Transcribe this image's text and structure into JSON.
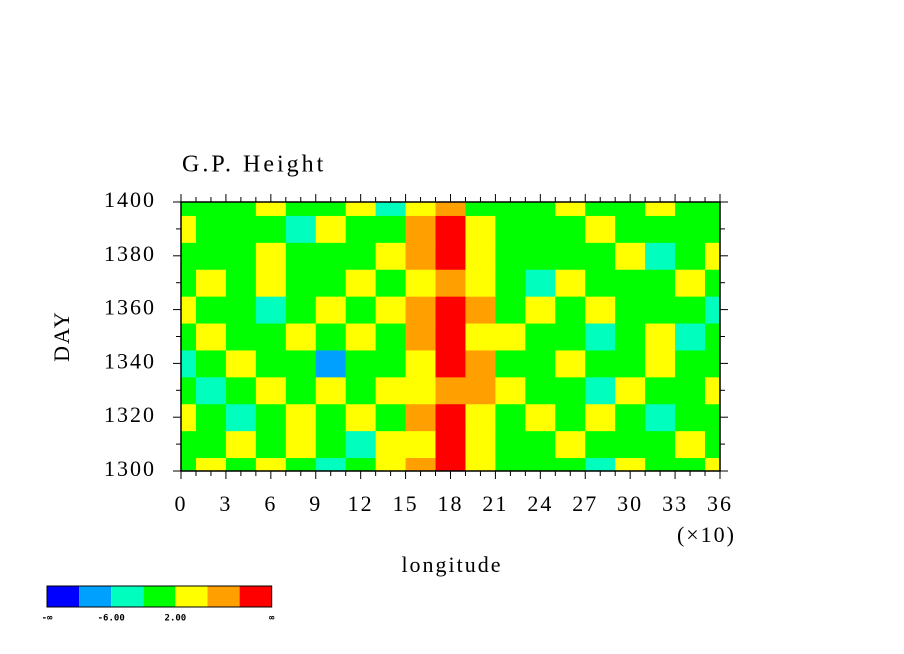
{
  "chart_data": {
    "type": "contourf",
    "title": "G.P. Height",
    "ylabel": "DAY",
    "xlabel": "longitude",
    "x_multiplier": "(×10)",
    "xlim": [
      0,
      36
    ],
    "xticks": [
      0,
      3,
      6,
      9,
      12,
      15,
      18,
      21,
      24,
      27,
      30,
      33,
      36
    ],
    "xminorticks": [
      1,
      2,
      4,
      5,
      7,
      8,
      10,
      11,
      13,
      14,
      16,
      17,
      19,
      20,
      22,
      23,
      25,
      26,
      28,
      29,
      31,
      32,
      34,
      35
    ],
    "ylim": [
      1300,
      1400
    ],
    "yticks": [
      1300,
      1320,
      1340,
      1360,
      1380,
      1400
    ],
    "yminorticks": [
      1310,
      1330,
      1350,
      1370,
      1390
    ],
    "x": [
      0,
      2,
      4,
      6,
      8,
      10,
      12,
      14,
      16,
      18,
      20,
      22,
      24,
      26,
      28,
      30,
      32,
      34,
      36
    ],
    "y": [
      1300,
      1310,
      1320,
      1330,
      1340,
      1350,
      1360,
      1370,
      1380,
      1390,
      1400
    ],
    "z": [
      [
        1,
        3,
        -1,
        2,
        0,
        -3,
        1,
        4,
        7,
        12,
        3,
        -2,
        1,
        0,
        -4,
        2,
        1,
        -1,
        3
      ],
      [
        -2,
        1,
        3,
        -1,
        2,
        0,
        -3,
        2,
        5,
        11,
        4,
        1,
        -1,
        3,
        0,
        -2,
        1,
        2,
        0
      ],
      [
        2,
        0,
        -3,
        1,
        4,
        -1,
        2,
        -2,
        6,
        13,
        5,
        0,
        3,
        -1,
        2,
        1,
        -3,
        0,
        1
      ],
      [
        0,
        -4,
        1,
        3,
        -1,
        2,
        0,
        3,
        4,
        9,
        7,
        2,
        -2,
        1,
        -3,
        4,
        0,
        -1,
        2
      ],
      [
        -3,
        1,
        2,
        -1,
        0,
        -7,
        1,
        -2,
        5,
        12,
        6,
        -1,
        0,
        2,
        1,
        -2,
        3,
        1,
        -1
      ],
      [
        1,
        2,
        -1,
        0,
        3,
        -2,
        4,
        1,
        7,
        11,
        3,
        2,
        -1,
        0,
        -3,
        1,
        2,
        -4,
        0
      ],
      [
        2,
        -1,
        0,
        -3,
        1,
        2,
        -1,
        3,
        6,
        14,
        8,
        0,
        2,
        -1,
        4,
        0,
        -2,
        1,
        -3
      ],
      [
        -1,
        3,
        1,
        2,
        -2,
        0,
        3,
        -1,
        4,
        8,
        5,
        1,
        -3,
        2,
        0,
        -1,
        1,
        3,
        0
      ],
      [
        0,
        1,
        -2,
        4,
        1,
        -1,
        0,
        2,
        7,
        13,
        4,
        -2,
        1,
        0,
        -1,
        3,
        -4,
        0,
        2
      ],
      [
        3,
        0,
        1,
        -1,
        -3,
        2,
        1,
        0,
        8,
        12,
        2,
        1,
        0,
        -2,
        3,
        1,
        0,
        -1,
        1
      ],
      [
        1,
        -2,
        0,
        3,
        1,
        -1,
        2,
        -3,
        3,
        7,
        1,
        0,
        -1,
        2,
        -1,
        0,
        2,
        1,
        -2
      ]
    ],
    "levels": [
      -10,
      -6,
      -2,
      2,
      6,
      10
    ],
    "colors": [
      "#0000ff",
      "#00a0ff",
      "#00ffbe",
      "#00ff00",
      "#ffff00",
      "#ffa000",
      "#ff0000"
    ],
    "colorbar_labels": [
      {
        "value": null,
        "label": "-∞"
      },
      {
        "value": -6,
        "label": "-6.00"
      },
      {
        "value": 2,
        "label": "2.00"
      },
      {
        "value": null,
        "label": "∞"
      }
    ]
  }
}
